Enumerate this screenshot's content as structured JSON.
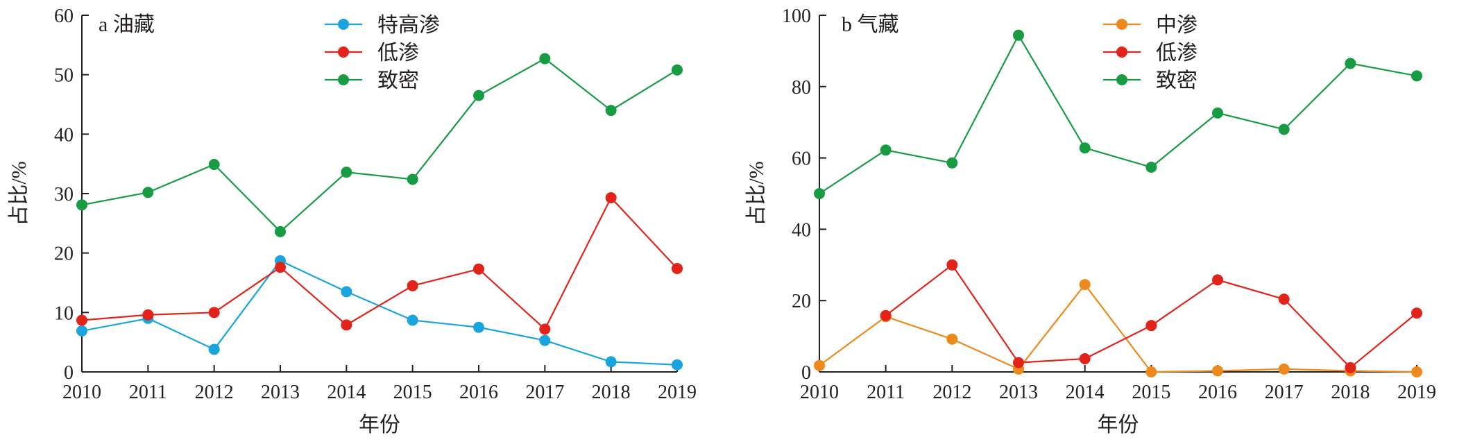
{
  "axis": {
    "xlabel": "年份",
    "ylabel": "占比/%"
  },
  "chart_data": [
    {
      "type": "line",
      "panel_label": "a 油藏",
      "x": [
        2010,
        2011,
        2012,
        2013,
        2014,
        2015,
        2016,
        2017,
        2018,
        2019
      ],
      "xlabel": "年份",
      "ylabel": "占比/%",
      "xlim": [
        2010,
        2019
      ],
      "ylim": [
        0,
        60
      ],
      "yticks": [
        0,
        10,
        20,
        30,
        40,
        50,
        60
      ],
      "grid": false,
      "legend_position": "top-center",
      "series": [
        {
          "name": "特高渗",
          "color": "#1aa4de",
          "values": [
            6.9,
            9.0,
            3.8,
            18.7,
            13.5,
            8.7,
            7.5,
            5.3,
            1.7,
            1.2
          ]
        },
        {
          "name": "低渗",
          "color": "#e2231a",
          "values": [
            8.7,
            9.6,
            10.0,
            17.6,
            7.9,
            14.5,
            17.3,
            7.2,
            29.3,
            17.4
          ]
        },
        {
          "name": "致密",
          "color": "#179b43",
          "values": [
            28.1,
            30.2,
            34.9,
            23.6,
            33.6,
            32.4,
            46.5,
            52.7,
            44.0,
            50.8
          ]
        }
      ]
    },
    {
      "type": "line",
      "panel_label": "b 气藏",
      "x": [
        2010,
        2011,
        2012,
        2013,
        2014,
        2015,
        2016,
        2017,
        2018,
        2019
      ],
      "xlabel": "年份",
      "ylabel": "占比/%",
      "xlim": [
        2010,
        2019
      ],
      "ylim": [
        0,
        100
      ],
      "yticks": [
        0,
        20,
        40,
        60,
        80,
        100
      ],
      "grid": false,
      "legend_position": "top-center",
      "series": [
        {
          "name": "中渗",
          "color": "#ee8a1b",
          "values": [
            1.8,
            15.5,
            9.2,
            0.8,
            24.5,
            0.0,
            0.3,
            0.8,
            0.3,
            0.0
          ]
        },
        {
          "name": "低渗",
          "color": "#e2231a",
          "values": [
            null,
            15.8,
            30.0,
            2.6,
            3.7,
            13.0,
            25.8,
            20.4,
            1.2,
            16.5
          ]
        },
        {
          "name": "致密",
          "color": "#179b43",
          "values": [
            50.0,
            62.2,
            58.6,
            94.4,
            62.8,
            57.4,
            72.6,
            68.0,
            86.5,
            83.0
          ]
        }
      ]
    }
  ]
}
